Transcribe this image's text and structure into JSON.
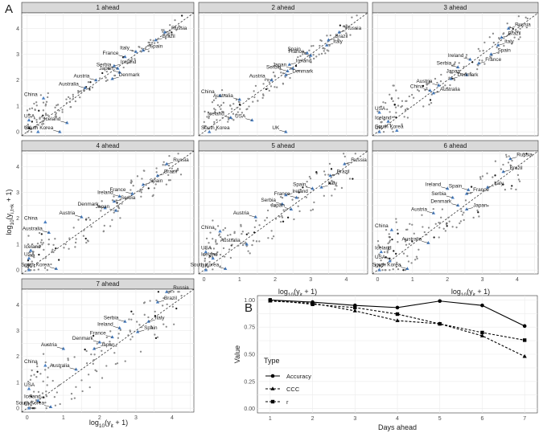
{
  "figure": {
    "panel_a_letter": "A",
    "panel_b_letter": "B"
  },
  "colors": {
    "highlight_triangle": "#4a7fc1",
    "other_points": "#8c8c8c",
    "strip_background": "#d9d9d9",
    "line": "#000000"
  },
  "chart_data": [
    {
      "type": "scatter",
      "facet_titles": [
        "1 ahead",
        "2 ahead",
        "3 ahead",
        "4 ahead",
        "5 ahead",
        "6 ahead",
        "7 ahead"
      ],
      "xlabel": "log10(y_it + 1)",
      "ylabel": "log10(y_(i,t+k) + 1)",
      "xlim": [
        -0.15,
        4.6
      ],
      "ylim": [
        -0.15,
        4.6
      ],
      "x_ticks": [
        0,
        1,
        2,
        3,
        4
      ],
      "y_ticks": [
        0,
        1,
        2,
        3,
        4
      ],
      "reference_line": "y = x (dashed)",
      "grid": true,
      "panels": [
        {
          "title": "1 ahead",
          "points": [
            {
              "x": 3.8,
              "y": 3.85,
              "label": "Russia"
            },
            {
              "x": 3.55,
              "y": 3.55,
              "label": "Brazil"
            },
            {
              "x": 3.2,
              "y": 3.15,
              "label": "Spain"
            },
            {
              "x": 3.0,
              "y": 3.1,
              "label": "Italy"
            },
            {
              "x": 2.7,
              "y": 2.9,
              "label": "France"
            },
            {
              "x": 2.4,
              "y": 2.55,
              "label": "Ireland"
            },
            {
              "x": 2.5,
              "y": 2.45,
              "label": "Serbia"
            },
            {
              "x": 2.55,
              "y": 2.3,
              "label": "Japan"
            },
            {
              "x": 2.35,
              "y": 2.05,
              "label": "Denmark"
            },
            {
              "x": 1.9,
              "y": 2.0,
              "label": "Austria"
            },
            {
              "x": 1.6,
              "y": 1.7,
              "label": "Australia"
            },
            {
              "x": 0.45,
              "y": 1.3,
              "label": "China"
            },
            {
              "x": 0.05,
              "y": 0.45,
              "label": "USA"
            },
            {
              "x": 1.1,
              "y": 0.35,
              "label": "Iceland"
            },
            {
              "x": 0.3,
              "y": 0.0,
              "label": "UK"
            },
            {
              "x": 0.9,
              "y": 0.0,
              "label": "South Korea"
            }
          ]
        },
        {
          "title": "2 ahead",
          "points": [
            {
              "x": 3.8,
              "y": 3.85,
              "label": "Russia"
            },
            {
              "x": 3.5,
              "y": 3.55,
              "label": "Brazil"
            },
            {
              "x": 3.45,
              "y": 3.35,
              "label": "Italy"
            },
            {
              "x": 2.9,
              "y": 3.05,
              "label": "Spain"
            },
            {
              "x": 3.0,
              "y": 2.95,
              "label": "France"
            },
            {
              "x": 2.4,
              "y": 2.6,
              "label": "Ireland"
            },
            {
              "x": 2.5,
              "y": 2.45,
              "label": "Japan"
            },
            {
              "x": 2.35,
              "y": 2.35,
              "label": "Serbia"
            },
            {
              "x": 2.3,
              "y": 2.2,
              "label": "Denmark"
            },
            {
              "x": 1.9,
              "y": 2.0,
              "label": "Austria"
            },
            {
              "x": 0.45,
              "y": 1.4,
              "label": "China"
            },
            {
              "x": 1.0,
              "y": 1.25,
              "label": "Australia"
            },
            {
              "x": 0.75,
              "y": 0.55,
              "label": "Iceland"
            },
            {
              "x": 1.35,
              "y": 0.45,
              "label": "USA"
            },
            {
              "x": 0.15,
              "y": 0.0,
              "label": "South Korea"
            },
            {
              "x": 2.3,
              "y": 0.0,
              "label": "UK"
            }
          ]
        },
        {
          "title": "3 ahead",
          "points": [
            {
              "x": 3.75,
              "y": 4.0,
              "label": "Russia"
            },
            {
              "x": 3.55,
              "y": 3.65,
              "label": "Brazil"
            },
            {
              "x": 3.45,
              "y": 3.35,
              "label": "Italy"
            },
            {
              "x": 3.25,
              "y": 3.0,
              "label": "Spain"
            },
            {
              "x": 2.65,
              "y": 2.8,
              "label": "Ireland"
            },
            {
              "x": 2.9,
              "y": 2.65,
              "label": "France"
            },
            {
              "x": 2.3,
              "y": 2.5,
              "label": "Serbia"
            },
            {
              "x": 2.55,
              "y": 2.2,
              "label": "Japan"
            },
            {
              "x": 2.1,
              "y": 2.05,
              "label": "Denmark"
            },
            {
              "x": 1.75,
              "y": 1.8,
              "label": "Austria"
            },
            {
              "x": 1.5,
              "y": 1.6,
              "label": "China"
            },
            {
              "x": 1.6,
              "y": 1.5,
              "label": "Australia"
            },
            {
              "x": 0.05,
              "y": 0.75,
              "label": "USA"
            },
            {
              "x": 0.3,
              "y": 0.4,
              "label": "Iceland"
            },
            {
              "x": 0.05,
              "y": 0.0,
              "label": "UK"
            },
            {
              "x": 0.55,
              "y": 0.05,
              "label": "South Korea"
            }
          ]
        },
        {
          "title": "4 ahead",
          "points": [
            {
              "x": 3.85,
              "y": 4.1,
              "label": "Russia"
            },
            {
              "x": 3.6,
              "y": 3.65,
              "label": "Brazil"
            },
            {
              "x": 3.2,
              "y": 3.3,
              "label": "Spain"
            },
            {
              "x": 2.9,
              "y": 2.95,
              "label": "France"
            },
            {
              "x": 2.55,
              "y": 2.85,
              "label": "Ireland"
            },
            {
              "x": 2.4,
              "y": 2.65,
              "label": "Serbia"
            },
            {
              "x": 2.15,
              "y": 2.4,
              "label": "Denmark"
            },
            {
              "x": 2.45,
              "y": 2.3,
              "label": "Japan"
            },
            {
              "x": 1.5,
              "y": 2.05,
              "label": "Austria"
            },
            {
              "x": 0.5,
              "y": 1.85,
              "label": "China"
            },
            {
              "x": 0.6,
              "y": 1.45,
              "label": "Australia"
            },
            {
              "x": 0.1,
              "y": 0.75,
              "label": "Iceland"
            },
            {
              "x": 0.05,
              "y": 0.45,
              "label": "USA"
            },
            {
              "x": 0.05,
              "y": 0.0,
              "label": "UK"
            },
            {
              "x": 0.8,
              "y": 0.05,
              "label": "South Korea"
            }
          ]
        },
        {
          "title": "5 ahead",
          "points": [
            {
              "x": 3.95,
              "y": 4.1,
              "label": "Russia"
            },
            {
              "x": 3.55,
              "y": 3.65,
              "label": "Brazil"
            },
            {
              "x": 3.3,
              "y": 3.2,
              "label": "Italy"
            },
            {
              "x": 3.05,
              "y": 3.15,
              "label": "Spain"
            },
            {
              "x": 2.6,
              "y": 2.8,
              "label": "France"
            },
            {
              "x": 2.3,
              "y": 2.9,
              "label": "Ireland"
            },
            {
              "x": 2.2,
              "y": 2.55,
              "label": "Serbia"
            },
            {
              "x": 2.45,
              "y": 2.35,
              "label": "Japan"
            },
            {
              "x": 1.45,
              "y": 2.05,
              "label": "Austria"
            },
            {
              "x": 0.45,
              "y": 1.5,
              "label": "China"
            },
            {
              "x": 1.2,
              "y": 1.0,
              "label": "Australia"
            },
            {
              "x": 0.05,
              "y": 0.7,
              "label": "USA"
            },
            {
              "x": 0.25,
              "y": 0.45,
              "label": "Iceland"
            },
            {
              "x": 0.05,
              "y": 0.0,
              "label": "UK"
            },
            {
              "x": 0.6,
              "y": 0.05,
              "label": "South Korea"
            }
          ]
        },
        {
          "title": "6 ahead",
          "points": [
            {
              "x": 3.8,
              "y": 4.3,
              "label": "Russia"
            },
            {
              "x": 3.6,
              "y": 3.8,
              "label": "Brazil"
            },
            {
              "x": 3.15,
              "y": 3.2,
              "label": "Italy"
            },
            {
              "x": 2.6,
              "y": 3.1,
              "label": "Spain"
            },
            {
              "x": 2.0,
              "y": 3.15,
              "label": "Ireland"
            },
            {
              "x": 2.55,
              "y": 2.95,
              "label": "France"
            },
            {
              "x": 2.15,
              "y": 2.8,
              "label": "Serbia"
            },
            {
              "x": 2.3,
              "y": 2.5,
              "label": "Denmark"
            },
            {
              "x": 2.55,
              "y": 2.35,
              "label": "Japan"
            },
            {
              "x": 1.6,
              "y": 2.2,
              "label": "Austria"
            },
            {
              "x": 0.4,
              "y": 1.55,
              "label": "China"
            },
            {
              "x": 1.45,
              "y": 1.05,
              "label": "Australia"
            },
            {
              "x": 0.1,
              "y": 0.7,
              "label": "Iceland"
            },
            {
              "x": 0.35,
              "y": 0.35,
              "label": "USA"
            },
            {
              "x": 0.05,
              "y": 0.0,
              "label": "UK"
            },
            {
              "x": 0.85,
              "y": 0.05,
              "label": "South Korea"
            }
          ]
        },
        {
          "title": "7 ahead",
          "points": [
            {
              "x": 3.85,
              "y": 4.5,
              "label": "Russia"
            },
            {
              "x": 3.6,
              "y": 4.1,
              "label": "Brazil"
            },
            {
              "x": 3.35,
              "y": 3.35,
              "label": "Italy"
            },
            {
              "x": 2.7,
              "y": 3.35,
              "label": "Serbia"
            },
            {
              "x": 2.55,
              "y": 3.1,
              "label": "Ireland"
            },
            {
              "x": 3.05,
              "y": 2.95,
              "label": "Spain"
            },
            {
              "x": 2.35,
              "y": 2.75,
              "label": "France"
            },
            {
              "x": 2.0,
              "y": 2.55,
              "label": "Denmark"
            },
            {
              "x": 1.85,
              "y": 2.3,
              "label": "Japan"
            },
            {
              "x": 1.0,
              "y": 2.3,
              "label": "Austria"
            },
            {
              "x": 0.5,
              "y": 1.65,
              "label": "China"
            },
            {
              "x": 1.35,
              "y": 1.5,
              "label": "Australia"
            },
            {
              "x": 0.05,
              "y": 0.75,
              "label": "USA"
            },
            {
              "x": 0.3,
              "y": 0.3,
              "label": "Iceland"
            },
            {
              "x": 0.05,
              "y": 0.0,
              "label": "UK"
            },
            {
              "x": 0.65,
              "y": 0.05,
              "label": "South Korea"
            }
          ]
        }
      ]
    },
    {
      "type": "line",
      "xlabel": "Days ahead",
      "ylabel": "Value",
      "x": [
        1,
        2,
        3,
        4,
        5,
        6,
        7
      ],
      "xlim": [
        0.7,
        7.3
      ],
      "ylim": [
        -0.04,
        1.04
      ],
      "y_ticks": [
        "0.00",
        "0.25",
        "0.50",
        "0.75",
        "1.00"
      ],
      "grid": true,
      "legend_title": "Type",
      "legend_position": "inside-left",
      "series": [
        {
          "name": "Accuracy",
          "marker": "circle",
          "linestyle": "solid",
          "values": [
            1.0,
            0.98,
            0.95,
            0.93,
            0.99,
            0.95,
            0.76
          ]
        },
        {
          "name": "CCC",
          "marker": "triangle",
          "linestyle": "dashed",
          "values": [
            0.99,
            0.97,
            0.9,
            0.81,
            0.78,
            0.67,
            0.48
          ]
        },
        {
          "name": "r",
          "marker": "square",
          "linestyle": "dashed",
          "values": [
            1.0,
            0.96,
            0.93,
            0.87,
            0.78,
            0.7,
            0.63
          ]
        }
      ]
    }
  ]
}
